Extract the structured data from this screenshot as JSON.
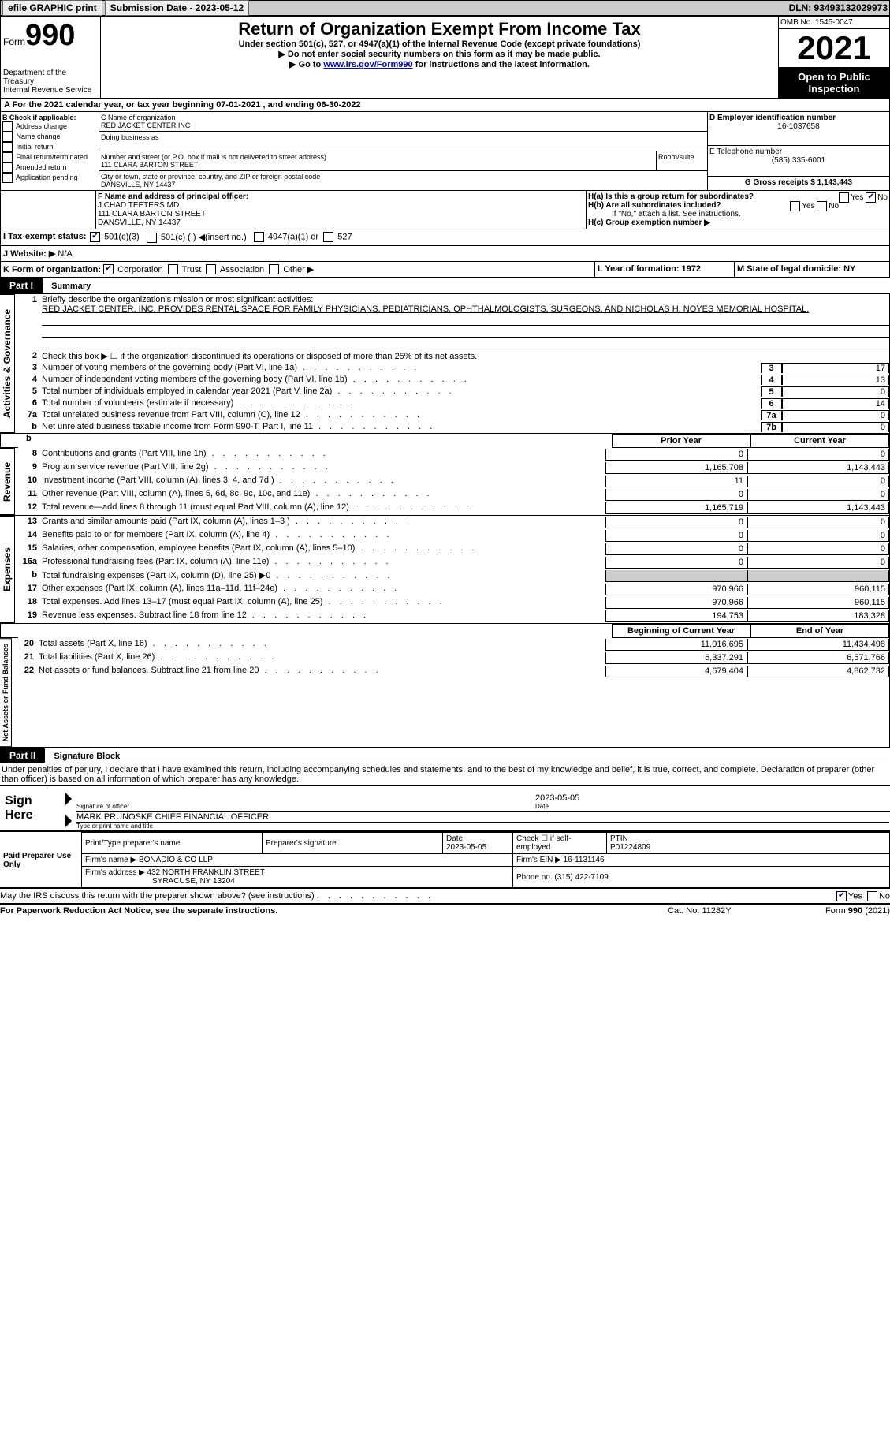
{
  "topbar": {
    "efile": "efile GRAPHIC print",
    "submission_label": "Submission Date - 2023-05-12",
    "dln_label": "DLN: 93493132029973"
  },
  "header": {
    "form_prefix": "Form",
    "form_number": "990",
    "dept": "Department of the Treasury\nInternal Revenue Service",
    "title": "Return of Organization Exempt From Income Tax",
    "subtitle": "Under section 501(c), 527, or 4947(a)(1) of the Internal Revenue Code (except private foundations)",
    "instr1": "▶ Do not enter social security numbers on this form as it may be made public.",
    "instr2_prefix": "▶ Go to ",
    "instr2_link": "www.irs.gov/Form990",
    "instr2_suffix": " for instructions and the latest information.",
    "omb": "OMB No. 1545-0047",
    "year": "2021",
    "open_pub": "Open to Public Inspection"
  },
  "a": {
    "line": "A For the 2021 calendar year, or tax year beginning 07-01-2021   , and ending 06-30-2022"
  },
  "b": {
    "label": "B Check if applicable:",
    "opts": [
      "Address change",
      "Name change",
      "Initial return",
      "Final return/terminated",
      "Amended return",
      "Application pending"
    ]
  },
  "c": {
    "name_label": "C Name of organization",
    "name": "RED JACKET CENTER INC",
    "dba_label": "Doing business as",
    "street_label": "Number and street (or P.O. box if mail is not delivered to street address)",
    "room_label": "Room/suite",
    "street": "111 CLARA BARTON STREET",
    "city_label": "City or town, state or province, country, and ZIP or foreign postal code",
    "city": "DANSVILLE, NY  14437"
  },
  "d": {
    "label": "D Employer identification number",
    "value": "16-1037658"
  },
  "e": {
    "label": "E Telephone number",
    "value": "(585) 335-6001"
  },
  "g": {
    "label": "G Gross receipts $ 1,143,443"
  },
  "f": {
    "label": "F  Name and address of principal officer:",
    "name": "J CHAD TEETERS MD",
    "addr1": "111 CLARA BARTON STREET",
    "addr2": "DANSVILLE, NY  14437"
  },
  "h": {
    "a": "H(a)  Is this a group return for subordinates?",
    "b": "H(b)  Are all subordinates included?",
    "b_note": "If \"No,\" attach a list. See instructions.",
    "c": "H(c)  Group exemption number ▶"
  },
  "i": {
    "label": "I   Tax-exempt status:",
    "opts": [
      "501(c)(3)",
      "501(c) (  ) ◀(insert no.)",
      "4947(a)(1) or",
      "527"
    ]
  },
  "j": {
    "label": "J   Website: ▶",
    "value": "N/A"
  },
  "k": {
    "label": "K Form of organization:",
    "opts": [
      "Corporation",
      "Trust",
      "Association",
      "Other ▶"
    ]
  },
  "l": {
    "label": "L Year of formation: 1972"
  },
  "m": {
    "label": "M State of legal domicile: NY"
  },
  "part1": {
    "header": "Part I",
    "title": "Summary"
  },
  "summary": {
    "vtab1": "Activities & Governance",
    "line1_label": "Briefly describe the organization's mission or most significant activities:",
    "line1_text": "RED JACKET CENTER, INC. PROVIDES RENTAL SPACE FOR FAMILY PHYSICIANS, PEDIATRICIANS, OPHTHALMOLOGISTS, SURGEONS, AND NICHOLAS H. NOYES MEMORIAL HOSPITAL.",
    "line2": "Check this box ▶ ☐ if the organization discontinued its operations or disposed of more than 25% of its net assets.",
    "rows_gov": [
      {
        "n": "3",
        "t": "Number of voting members of the governing body (Part VI, line 1a)",
        "box": "3",
        "v": "17"
      },
      {
        "n": "4",
        "t": "Number of independent voting members of the governing body (Part VI, line 1b)",
        "box": "4",
        "v": "13"
      },
      {
        "n": "5",
        "t": "Total number of individuals employed in calendar year 2021 (Part V, line 2a)",
        "box": "5",
        "v": "0"
      },
      {
        "n": "6",
        "t": "Total number of volunteers (estimate if necessary)",
        "box": "6",
        "v": "14"
      },
      {
        "n": "7a",
        "t": "Total unrelated business revenue from Part VIII, column (C), line 12",
        "box": "7a",
        "v": "0"
      },
      {
        "n": "b",
        "t": "Net unrelated business taxable income from Form 990-T, Part I, line 11",
        "box": "7b",
        "v": "0"
      }
    ],
    "col_prior": "Prior Year",
    "col_current": "Current Year",
    "vtab2": "Revenue",
    "rows_rev": [
      {
        "n": "8",
        "t": "Contributions and grants (Part VIII, line 1h)",
        "py": "0",
        "cy": "0"
      },
      {
        "n": "9",
        "t": "Program service revenue (Part VIII, line 2g)",
        "py": "1,165,708",
        "cy": "1,143,443"
      },
      {
        "n": "10",
        "t": "Investment income (Part VIII, column (A), lines 3, 4, and 7d )",
        "py": "11",
        "cy": "0"
      },
      {
        "n": "11",
        "t": "Other revenue (Part VIII, column (A), lines 5, 6d, 8c, 9c, 10c, and 11e)",
        "py": "0",
        "cy": "0"
      },
      {
        "n": "12",
        "t": "Total revenue—add lines 8 through 11 (must equal Part VIII, column (A), line 12)",
        "py": "1,165,719",
        "cy": "1,143,443"
      }
    ],
    "vtab3": "Expenses",
    "rows_exp": [
      {
        "n": "13",
        "t": "Grants and similar amounts paid (Part IX, column (A), lines 1–3 )",
        "py": "0",
        "cy": "0"
      },
      {
        "n": "14",
        "t": "Benefits paid to or for members (Part IX, column (A), line 4)",
        "py": "0",
        "cy": "0"
      },
      {
        "n": "15",
        "t": "Salaries, other compensation, employee benefits (Part IX, column (A), lines 5–10)",
        "py": "0",
        "cy": "0"
      },
      {
        "n": "16a",
        "t": "Professional fundraising fees (Part IX, column (A), line 11e)",
        "py": "0",
        "cy": "0"
      },
      {
        "n": "b",
        "t": "Total fundraising expenses (Part IX, column (D), line 25) ▶0",
        "py": "SHADE",
        "cy": "SHADE"
      },
      {
        "n": "17",
        "t": "Other expenses (Part IX, column (A), lines 11a–11d, 11f–24e)",
        "py": "970,966",
        "cy": "960,115"
      },
      {
        "n": "18",
        "t": "Total expenses. Add lines 13–17 (must equal Part IX, column (A), line 25)",
        "py": "970,966",
        "cy": "960,115"
      },
      {
        "n": "19",
        "t": "Revenue less expenses. Subtract line 18 from line 12",
        "py": "194,753",
        "cy": "183,328"
      }
    ],
    "col_begin": "Beginning of Current Year",
    "col_end": "End of Year",
    "vtab4": "Net Assets or Fund Balances",
    "rows_net": [
      {
        "n": "20",
        "t": "Total assets (Part X, line 16)",
        "py": "11,016,695",
        "cy": "11,434,498"
      },
      {
        "n": "21",
        "t": "Total liabilities (Part X, line 26)",
        "py": "6,337,291",
        "cy": "6,571,766"
      },
      {
        "n": "22",
        "t": "Net assets or fund balances. Subtract line 21 from line 20",
        "py": "4,679,404",
        "cy": "4,862,732"
      }
    ]
  },
  "part2": {
    "header": "Part II",
    "title": "Signature Block"
  },
  "sig": {
    "decl": "Under penalties of perjury, I declare that I have examined this return, including accompanying schedules and statements, and to the best of my knowledge and belief, it is true, correct, and complete. Declaration of preparer (other than officer) is based on all information of which preparer has any knowledge.",
    "sign_here": "Sign Here",
    "sig_of_officer": "Signature of officer",
    "date": "Date",
    "date_val": "2023-05-05",
    "officer_name": "MARK PRUNOSKE  CHIEF FINANCIAL OFFICER",
    "type_name": "Type or print name and title"
  },
  "prep": {
    "label": "Paid Preparer Use Only",
    "print_name_label": "Print/Type preparer's name",
    "sig_label": "Preparer's signature",
    "date_label": "Date",
    "date_val": "2023-05-05",
    "check_label": "Check ☐ if self-employed",
    "ptin_label": "PTIN",
    "ptin": "P01224809",
    "firm_name_label": "Firm's name    ▶",
    "firm_name": "BONADIO & CO LLP",
    "firm_ein_label": "Firm's EIN ▶",
    "firm_ein": "16-1131146",
    "firm_addr_label": "Firm's address ▶",
    "firm_addr1": "432 NORTH FRANKLIN STREET",
    "firm_addr2": "SYRACUSE, NY  13204",
    "phone_label": "Phone no.",
    "phone": "(315) 422-7109"
  },
  "footer": {
    "discuss": "May the IRS discuss this return with the preparer shown above? (see instructions)",
    "paperwork": "For Paperwork Reduction Act Notice, see the separate instructions.",
    "cat": "Cat. No. 11282Y",
    "form": "Form 990 (2021)"
  }
}
